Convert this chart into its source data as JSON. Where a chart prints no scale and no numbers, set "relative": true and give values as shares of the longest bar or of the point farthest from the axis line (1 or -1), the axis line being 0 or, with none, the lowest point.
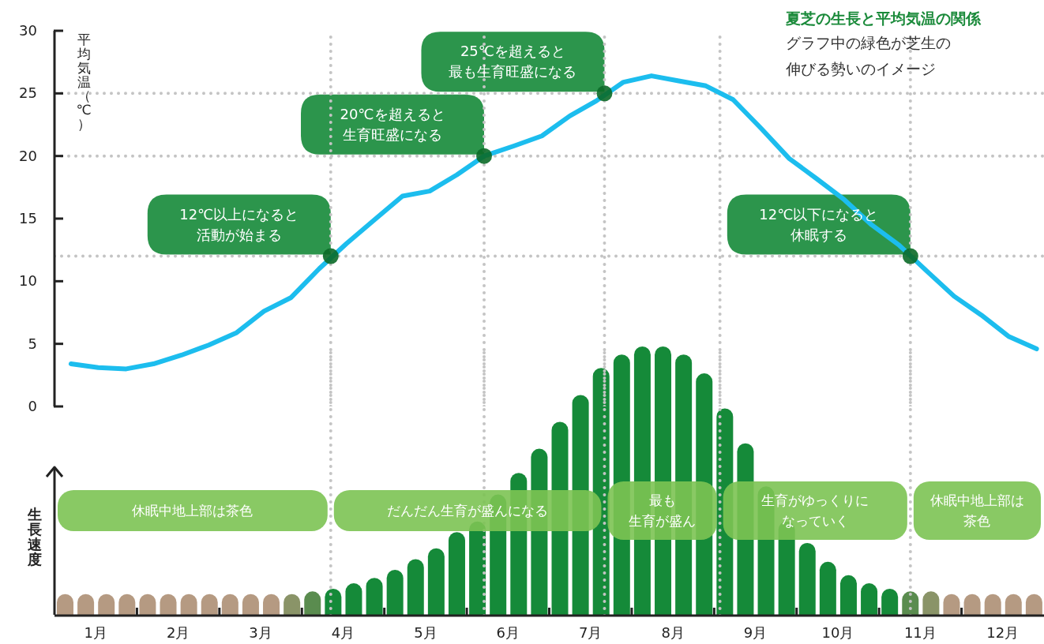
{
  "chart_data": [
    {
      "type": "line",
      "title": "夏芝の生長と平均気温の関係",
      "subtitle": "グラフ中の緑色が芝生の伸びる勢いのイメージ",
      "ylabel": "平均気温（℃）",
      "x": [
        0.2,
        0.53,
        0.87,
        1.2,
        1.54,
        1.87,
        2.21,
        2.54,
        2.87,
        3.21,
        3.54,
        3.88,
        4.22,
        4.55,
        4.88,
        5.21,
        5.57,
        5.91,
        6.25,
        6.57,
        6.9,
        7.24,
        7.57,
        7.9,
        8.23,
        8.57,
        8.91,
        9.24,
        9.58,
        9.91,
        10.24,
        10.58,
        10.91,
        11.24,
        11.57,
        11.91
      ],
      "values": [
        3.4,
        3.1,
        3.0,
        3.4,
        4.1,
        4.9,
        5.9,
        7.6,
        8.7,
        11.0,
        13.0,
        14.9,
        16.8,
        17.2,
        18.5,
        20.0,
        20.8,
        21.6,
        23.2,
        24.4,
        25.9,
        26.4,
        26.0,
        25.6,
        24.5,
        22.2,
        19.8,
        18.2,
        16.5,
        14.5,
        12.9,
        10.8,
        8.8,
        7.3,
        5.6,
        4.6
      ],
      "color": "#1cbdee",
      "xlim": [
        0,
        12
      ],
      "ylim": [
        0,
        30
      ],
      "yticks": [
        0,
        5,
        10,
        15,
        20,
        25,
        30
      ],
      "tick_labels": "y",
      "ref_lines": [
        {
          "axis": "y",
          "value": 12,
          "color": "#c4c4c4",
          "line_style": "dotted"
        },
        {
          "axis": "y",
          "value": 20,
          "color": "#c4c4c4",
          "line_style": "dotted"
        },
        {
          "axis": "y",
          "value": 25,
          "color": "#c4c4c4",
          "line_style": "dotted"
        },
        {
          "axis": "x",
          "value": 3.35,
          "color": "#c4c4c4",
          "line_style": "dotted"
        },
        {
          "axis": "x",
          "value": 5.21,
          "color": "#c4c4c4",
          "line_style": "dotted"
        },
        {
          "axis": "x",
          "value": 6.67,
          "color": "#c4c4c4",
          "line_style": "dotted"
        },
        {
          "axis": "x",
          "value": 8.07,
          "color": "#c4c4c4",
          "line_style": "dotted"
        },
        {
          "axis": "x",
          "value": 10.38,
          "color": "#c4c4c4",
          "line_style": "dotted"
        }
      ],
      "annotations": [
        {
          "text": "12℃以上になると活動が始まる",
          "x": 3.35,
          "y": 12
        },
        {
          "text": "20℃を超えると生育旺盛になる",
          "x": 5.21,
          "y": 20
        },
        {
          "text": "25℃を超えると最も生育旺盛になる",
          "x": 6.67,
          "y": 25
        },
        {
          "text": "12℃以下になると休眠する",
          "x": 10.38,
          "y": 12
        }
      ]
    },
    {
      "type": "bar",
      "ylabel": "生長速度",
      "relative": true,
      "x": [
        0.125,
        0.375,
        0.625,
        0.875,
        1.125,
        1.375,
        1.625,
        1.875,
        2.125,
        2.375,
        2.625,
        2.875,
        3.125,
        3.375,
        3.625,
        3.875,
        4.125,
        4.375,
        4.625,
        4.875,
        5.125,
        5.375,
        5.625,
        5.875,
        6.125,
        6.375,
        6.625,
        6.875,
        7.125,
        7.375,
        7.625,
        7.875,
        8.125,
        8.375,
        8.625,
        8.875,
        9.125,
        9.375,
        9.625,
        9.875,
        10.125,
        10.375,
        10.625,
        10.875,
        11.125,
        11.375,
        11.625,
        11.875
      ],
      "values": [
        0.08,
        0.08,
        0.08,
        0.08,
        0.08,
        0.08,
        0.08,
        0.08,
        0.08,
        0.08,
        0.08,
        0.08,
        0.09,
        0.1,
        0.12,
        0.14,
        0.17,
        0.21,
        0.25,
        0.31,
        0.35,
        0.45,
        0.53,
        0.62,
        0.72,
        0.82,
        0.92,
        0.97,
        1.0,
        1.0,
        0.97,
        0.9,
        0.77,
        0.64,
        0.48,
        0.35,
        0.27,
        0.2,
        0.15,
        0.12,
        0.1,
        0.09,
        0.09,
        0.08,
        0.08,
        0.08,
        0.08,
        0.08
      ],
      "colors": [
        "#b59a82",
        "#b59a82",
        "#b59a82",
        "#b59a82",
        "#b59a82",
        "#b59a82",
        "#b59a82",
        "#b59a82",
        "#b59a82",
        "#b59a82",
        "#b59a82",
        "#8a9468",
        "#5a8c4f",
        "#158a39",
        "#158a39",
        "#158a39",
        "#158a39",
        "#158a39",
        "#158a39",
        "#158a39",
        "#158a39",
        "#158a39",
        "#158a39",
        "#158a39",
        "#158a39",
        "#158a39",
        "#158a39",
        "#158a39",
        "#158a39",
        "#158a39",
        "#158a39",
        "#158a39",
        "#158a39",
        "#158a39",
        "#158a39",
        "#158a39",
        "#158a39",
        "#158a39",
        "#158a39",
        "#158a39",
        "#158a39",
        "#5a8c4f",
        "#8a9468",
        "#b59a82",
        "#b59a82",
        "#b59a82",
        "#b59a82",
        "#b59a82"
      ],
      "xlim": [
        0,
        12
      ],
      "xticks": [
        {
          "value": 0.5,
          "label": "1月"
        },
        {
          "value": 1,
          "label": null
        },
        {
          "value": 1.5,
          "label": "2月"
        },
        {
          "value": 2,
          "label": null
        },
        {
          "value": 2.5,
          "label": "3月"
        },
        {
          "value": 3,
          "label": null
        },
        {
          "value": 3.5,
          "label": "4月"
        },
        {
          "value": 4,
          "label": null
        },
        {
          "value": 4.5,
          "label": "5月"
        },
        {
          "value": 5,
          "label": null
        },
        {
          "value": 5.5,
          "label": "6月"
        },
        {
          "value": 6,
          "label": null
        },
        {
          "value": 6.5,
          "label": "7月"
        },
        {
          "value": 7,
          "label": null
        },
        {
          "value": 7.5,
          "label": "8月"
        },
        {
          "value": 8,
          "label": null
        },
        {
          "value": 8.5,
          "label": "9月"
        },
        {
          "value": 9,
          "label": null
        },
        {
          "value": 9.5,
          "label": "10月"
        },
        {
          "value": 10,
          "label": null
        },
        {
          "value": 10.5,
          "label": "11月"
        },
        {
          "value": 11,
          "label": null
        },
        {
          "value": 11.5,
          "label": "12月"
        }
      ],
      "ref_lines": [
        {
          "axis": "x",
          "value": 3.35,
          "color": "#c4c4c4",
          "line_style": "dotted"
        },
        {
          "axis": "x",
          "value": 5.21,
          "color": "#c4c4c4",
          "line_style": "dotted"
        },
        {
          "axis": "x",
          "value": 6.67,
          "color": "#c4c4c4",
          "line_style": "dotted"
        },
        {
          "axis": "x",
          "value": 8.07,
          "color": "#c4c4c4",
          "line_style": "dotted"
        },
        {
          "axis": "x",
          "value": 10.38,
          "color": "#c4c4c4",
          "line_style": "dotted"
        }
      ],
      "bands": [
        {
          "axis": "x",
          "from": 0,
          "to": 3.35,
          "label": "休眠中地上部は茶色",
          "color": "#7cc353"
        },
        {
          "axis": "x",
          "from": 3.35,
          "to": 6.67,
          "label": "だんだん生育が盛んになる",
          "color": "#7cc353"
        },
        {
          "axis": "x",
          "from": 6.67,
          "to": 8.07,
          "label": "最も生育が盛ん",
          "color": "#7cc353"
        },
        {
          "axis": "x",
          "from": 8.07,
          "to": 10.38,
          "label": "生育がゆっくりになっていく",
          "color": "#7cc353"
        },
        {
          "axis": "x",
          "from": 10.38,
          "to": 12,
          "label": "休眠中地上部は茶色",
          "color": "#7cc353"
        }
      ]
    }
  ]
}
